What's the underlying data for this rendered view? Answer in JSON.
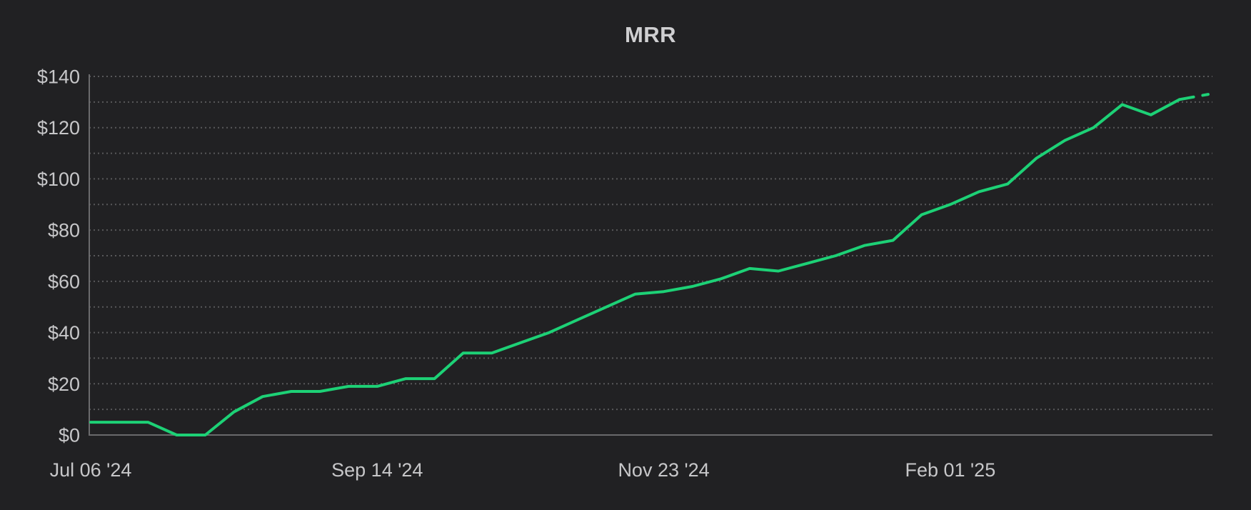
{
  "chart_data": {
    "type": "line",
    "title": "MRR",
    "series": [
      {
        "name": "MRR",
        "x": [
          "Jul 06 '24",
          "Jul 13 '24",
          "Jul 20 '24",
          "Jul 27 '24",
          "Aug 03 '24",
          "Aug 10 '24",
          "Aug 17 '24",
          "Aug 24 '24",
          "Aug 31 '24",
          "Sep 07 '24",
          "Sep 14 '24",
          "Sep 21 '24",
          "Sep 28 '24",
          "Oct 05 '24",
          "Oct 12 '24",
          "Oct 19 '24",
          "Oct 26 '24",
          "Nov 02 '24",
          "Nov 09 '24",
          "Nov 16 '24",
          "Nov 23 '24",
          "Nov 30 '24",
          "Dec 07 '24",
          "Dec 14 '24",
          "Dec 21 '24",
          "Dec 28 '24",
          "Jan 04 '25",
          "Jan 11 '25",
          "Jan 18 '25",
          "Jan 25 '25",
          "Feb 01 '25",
          "Feb 08 '25",
          "Feb 15 '25",
          "Feb 22 '25",
          "Mar 01 '25",
          "Mar 08 '25",
          "Mar 15 '25",
          "Mar 22 '25",
          "Mar 29 '25",
          "Apr 05 '25"
        ],
        "values": [
          5,
          5,
          5,
          0,
          0,
          9,
          15,
          17,
          17,
          19,
          19,
          22,
          22,
          32,
          32,
          36,
          40,
          45,
          50,
          55,
          56,
          58,
          61,
          65,
          64,
          67,
          70,
          74,
          76,
          86,
          90,
          95,
          98,
          108,
          115,
          120,
          129,
          125,
          131,
          133
        ]
      }
    ],
    "xlabel": "",
    "ylabel": "",
    "ylim": [
      0,
      140
    ],
    "y_tick_step": 20,
    "y_gridline_step": 10,
    "y_tick_prefix": "$",
    "y_tick_labels": [
      "$0",
      "$20",
      "$40",
      "$60",
      "$80",
      "$100",
      "$120",
      "$140"
    ],
    "x_tick_indices": [
      0,
      10,
      20,
      30
    ],
    "x_tick_labels": [
      "Jul 06 '24",
      "Sep 14 '24",
      "Nov 23 '24",
      "Feb 01 '25"
    ],
    "grid": "dotted-horizontal",
    "legend_position": "none",
    "last_segment_dashed": true,
    "colors": {
      "background": "#212123",
      "line": "#1dd176",
      "grid": "#58585a",
      "axis": "#6a6a6c",
      "tick_text": "#c7c7c9",
      "title_text": "#cfcfd1"
    }
  }
}
